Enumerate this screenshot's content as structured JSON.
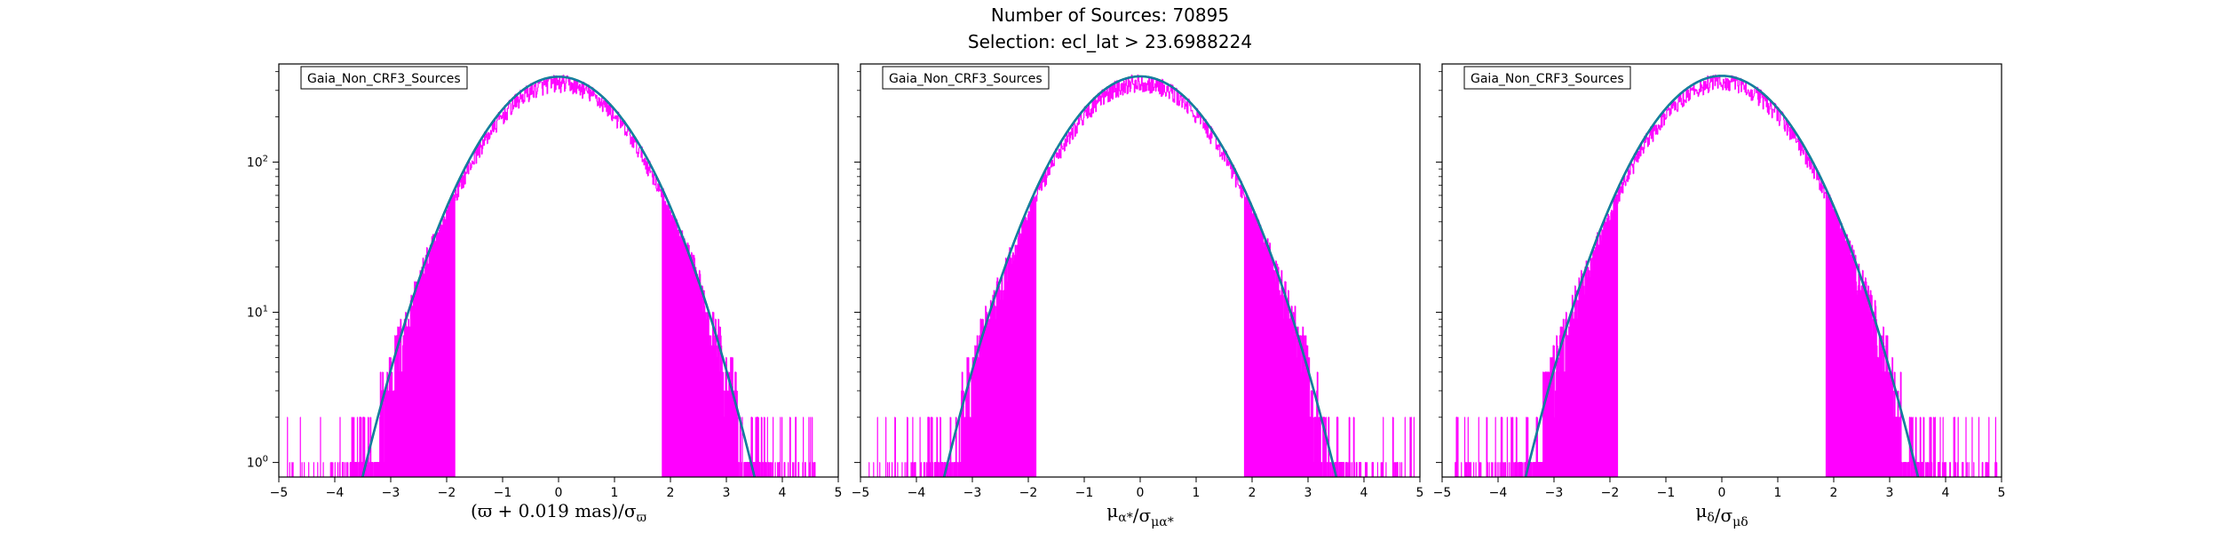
{
  "title_line1": "Number of Sources: 70895",
  "title_line2": "Selection: ecl_lat > 23.6988224",
  "colors": {
    "histogram": "#ff00ff",
    "fit_outer": "#008080",
    "fit_inner": "#1f77b4"
  },
  "chart_data": [
    {
      "type": "histogram",
      "legend": "Gaia_Non_CRF3_Sources",
      "xlabel": "(ϖ + 0.019 mas)/σ_ϖ",
      "xlim": [
        -5,
        5
      ],
      "ylim": [
        0.8,
        450
      ],
      "yscale": "log",
      "xticks": [
        "−5",
        "−4",
        "−3",
        "−2",
        "−1",
        "0",
        "1",
        "2",
        "3",
        "4",
        "5"
      ],
      "yticks": [
        {
          "value": 1,
          "label": "10^0"
        },
        {
          "value": 10,
          "label": "10^1"
        },
        {
          "value": 100,
          "label": "10^2"
        }
      ],
      "fit": {
        "peak": 370,
        "sigma": 1.0,
        "mean": 0.0
      },
      "histogram": {
        "peak": 335,
        "sigma": 1.0,
        "tail_left": -4.85,
        "tail_right": 4.6
      }
    },
    {
      "type": "histogram",
      "legend": "Gaia_Non_CRF3_Sources",
      "xlabel": "μ_α*/σ_μα*",
      "xlim": [
        -5,
        5
      ],
      "ylim": [
        0.8,
        450
      ],
      "yscale": "log",
      "xticks": [
        "−5",
        "−4",
        "−3",
        "−2",
        "−1",
        "0",
        "1",
        "2",
        "3",
        "4",
        "5"
      ],
      "yticks": [
        {
          "value": 1,
          "label": ""
        },
        {
          "value": 10,
          "label": ""
        },
        {
          "value": 100,
          "label": ""
        }
      ],
      "fit": {
        "peak": 372,
        "sigma": 1.0,
        "mean": 0.0
      },
      "histogram": {
        "peak": 338,
        "sigma": 1.0,
        "tail_left": -4.9,
        "tail_right": 4.95
      }
    },
    {
      "type": "histogram",
      "legend": "Gaia_Non_CRF3_Sources",
      "xlabel": "μ_δ/σ_μδ",
      "xlim": [
        -5,
        5
      ],
      "ylim": [
        0.8,
        450
      ],
      "yscale": "log",
      "xticks": [
        "−5",
        "−4",
        "−3",
        "−2",
        "−1",
        "0",
        "1",
        "2",
        "3",
        "4",
        "5"
      ],
      "yticks": [
        {
          "value": 1,
          "label": ""
        },
        {
          "value": 10,
          "label": ""
        },
        {
          "value": 100,
          "label": ""
        }
      ],
      "fit": {
        "peak": 375,
        "sigma": 1.0,
        "mean": 0.0
      },
      "histogram": {
        "peak": 340,
        "sigma": 1.0,
        "tail_left": -4.8,
        "tail_right": 4.95
      }
    }
  ]
}
